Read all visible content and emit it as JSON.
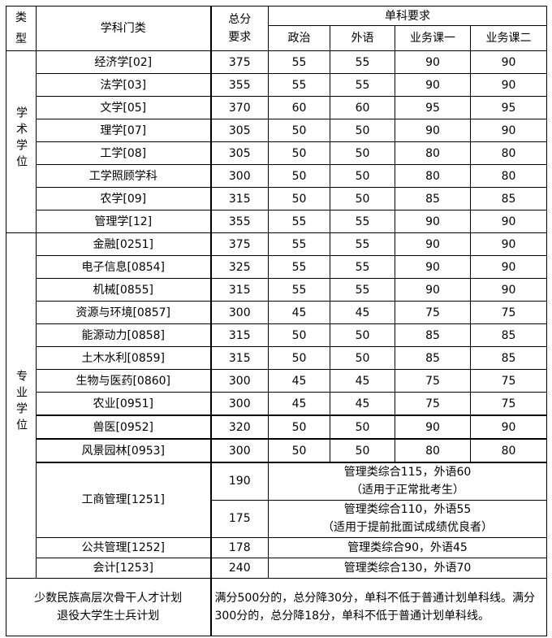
{
  "header": {
    "type": "类型",
    "type_line2": "型",
    "type_line1": "类",
    "subject": "学科门类",
    "total_line1": "总分",
    "total_line2": "要求",
    "single": "单科要求",
    "politics": "政治",
    "foreign": "外语",
    "course1": "业务课一",
    "course2": "业务课二"
  },
  "groups": [
    {
      "label": "学术学位",
      "rows": [
        [
          "经济学[02]",
          "375",
          "55",
          "55",
          "90",
          "90"
        ],
        [
          "法学[03]",
          "355",
          "55",
          "55",
          "90",
          "90"
        ],
        [
          "文学[05]",
          "370",
          "60",
          "60",
          "95",
          "95"
        ],
        [
          "理学[07]",
          "305",
          "50",
          "50",
          "90",
          "90"
        ],
        [
          "工学[08]",
          "305",
          "50",
          "50",
          "80",
          "80"
        ],
        [
          "工学照顾学科",
          "300",
          "50",
          "50",
          "80",
          "80"
        ],
        [
          "农学[09]",
          "315",
          "50",
          "50",
          "85",
          "85"
        ],
        [
          "管理学[12]",
          "355",
          "55",
          "55",
          "90",
          "90"
        ]
      ]
    },
    {
      "label": "专业学位",
      "rows": [
        [
          "金融[0251]",
          "375",
          "55",
          "55",
          "90",
          "90"
        ],
        [
          "电子信息[0854]",
          "325",
          "55",
          "55",
          "90",
          "90"
        ],
        [
          "机械[0855]",
          "315",
          "55",
          "55",
          "90",
          "90"
        ],
        [
          "资源与环境[0857]",
          "300",
          "45",
          "45",
          "75",
          "75"
        ],
        [
          "能源动力[0858]",
          "315",
          "50",
          "50",
          "85",
          "85"
        ],
        [
          "土木水利[0859]",
          "315",
          "50",
          "50",
          "85",
          "85"
        ],
        [
          "生物与医药[0860]",
          "300",
          "45",
          "45",
          "75",
          "75"
        ],
        [
          "农业[0951]",
          "300",
          "45",
          "45",
          "75",
          "75"
        ],
        [
          "兽医[0952]",
          "320",
          "50",
          "50",
          "90",
          "90"
        ],
        [
          "风景园林[0953]",
          "300",
          "50",
          "50",
          "80",
          "80"
        ]
      ]
    }
  ],
  "mba": {
    "name": "工商管理[1251]",
    "rows": [
      {
        "total": "190",
        "req": "管理类综合115，外语60",
        "note": "（适用于正常批考生）"
      },
      {
        "total": "175",
        "req": "管理类综合110，外语55",
        "note": "（适用于提前批面试成绩优良者）"
      }
    ]
  },
  "mpa": {
    "name": "公共管理[1252]",
    "total": "178",
    "req": "管理类综合90，外语45"
  },
  "acc": {
    "name": "会计[1253]",
    "total": "240",
    "req": "管理类综合130，外语70"
  },
  "footer": {
    "plan1": "少数民族高层次骨干人才计划",
    "plan2": "退役大学生士兵计划",
    "rule": "满分500分的，总分降30分，单科不低于普通计划单科线。满分300分的，总分降18分，单科不低于普通计划单科线。"
  }
}
